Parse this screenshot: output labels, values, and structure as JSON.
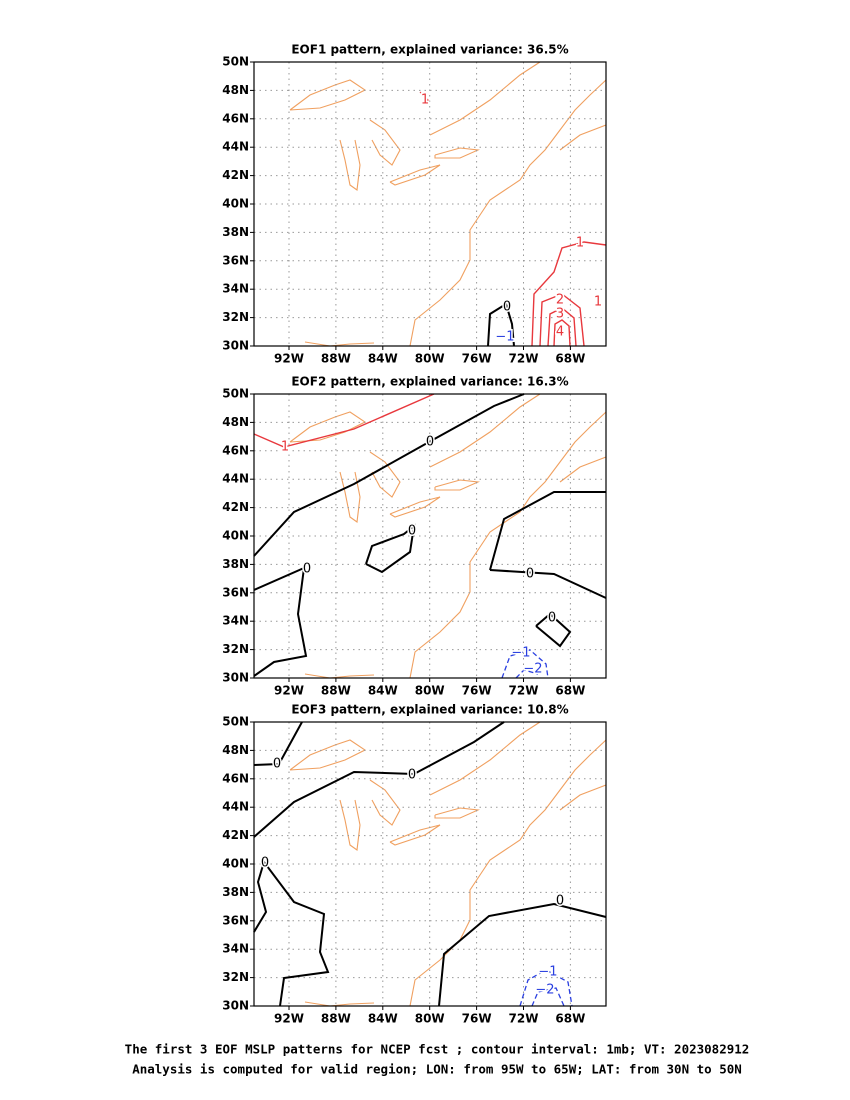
{
  "panels": [
    {
      "title": "EOF1 pattern, explained variance: 36.5%",
      "contour_labels": [
        {
          "text": "1",
          "color": "#e8383d"
        },
        {
          "text": "1",
          "color": "#e8383d"
        },
        {
          "text": "2",
          "color": "#e8383d"
        },
        {
          "text": "3",
          "color": "#e8383d"
        },
        {
          "text": "4",
          "color": "#e8383d"
        },
        {
          "text": "1",
          "color": "#e8383d"
        },
        {
          "text": "0",
          "color": "#000000"
        },
        {
          "text": "−1",
          "color": "#2a3fe0"
        }
      ]
    },
    {
      "title": "EOF2 pattern, explained variance: 16.3%",
      "contour_labels": [
        {
          "text": "1",
          "color": "#e8383d"
        },
        {
          "text": "0",
          "color": "#000000"
        },
        {
          "text": "0",
          "color": "#000000"
        },
        {
          "text": "0",
          "color": "#000000"
        },
        {
          "text": "0",
          "color": "#000000"
        },
        {
          "text": "0",
          "color": "#000000"
        },
        {
          "text": "−1",
          "color": "#2a3fe0"
        },
        {
          "text": "−2",
          "color": "#2a3fe0"
        }
      ]
    },
    {
      "title": "EOF3 pattern, explained variance: 10.8%",
      "contour_labels": [
        {
          "text": "0",
          "color": "#000000"
        },
        {
          "text": "0",
          "color": "#000000"
        },
        {
          "text": "0",
          "color": "#000000"
        },
        {
          "text": "0",
          "color": "#000000"
        },
        {
          "text": "−1",
          "color": "#2a3fe0"
        },
        {
          "text": "−2",
          "color": "#2a3fe0"
        }
      ]
    }
  ],
  "lon_labels": [
    "92W",
    "88W",
    "84W",
    "80W",
    "76W",
    "72W",
    "68W"
  ],
  "lat_labels": [
    "30N",
    "32N",
    "34N",
    "36N",
    "38N",
    "40N",
    "42N",
    "44N",
    "46N",
    "48N",
    "50N"
  ],
  "footer": [
    "The first 3 EOF MSLP patterns for NCEP fcst ; contour interval: 1mb; VT: 2023082912",
    "Analysis is computed for valid region; LON: from 95W to 65W; LAT: from 30N to 50N"
  ]
}
